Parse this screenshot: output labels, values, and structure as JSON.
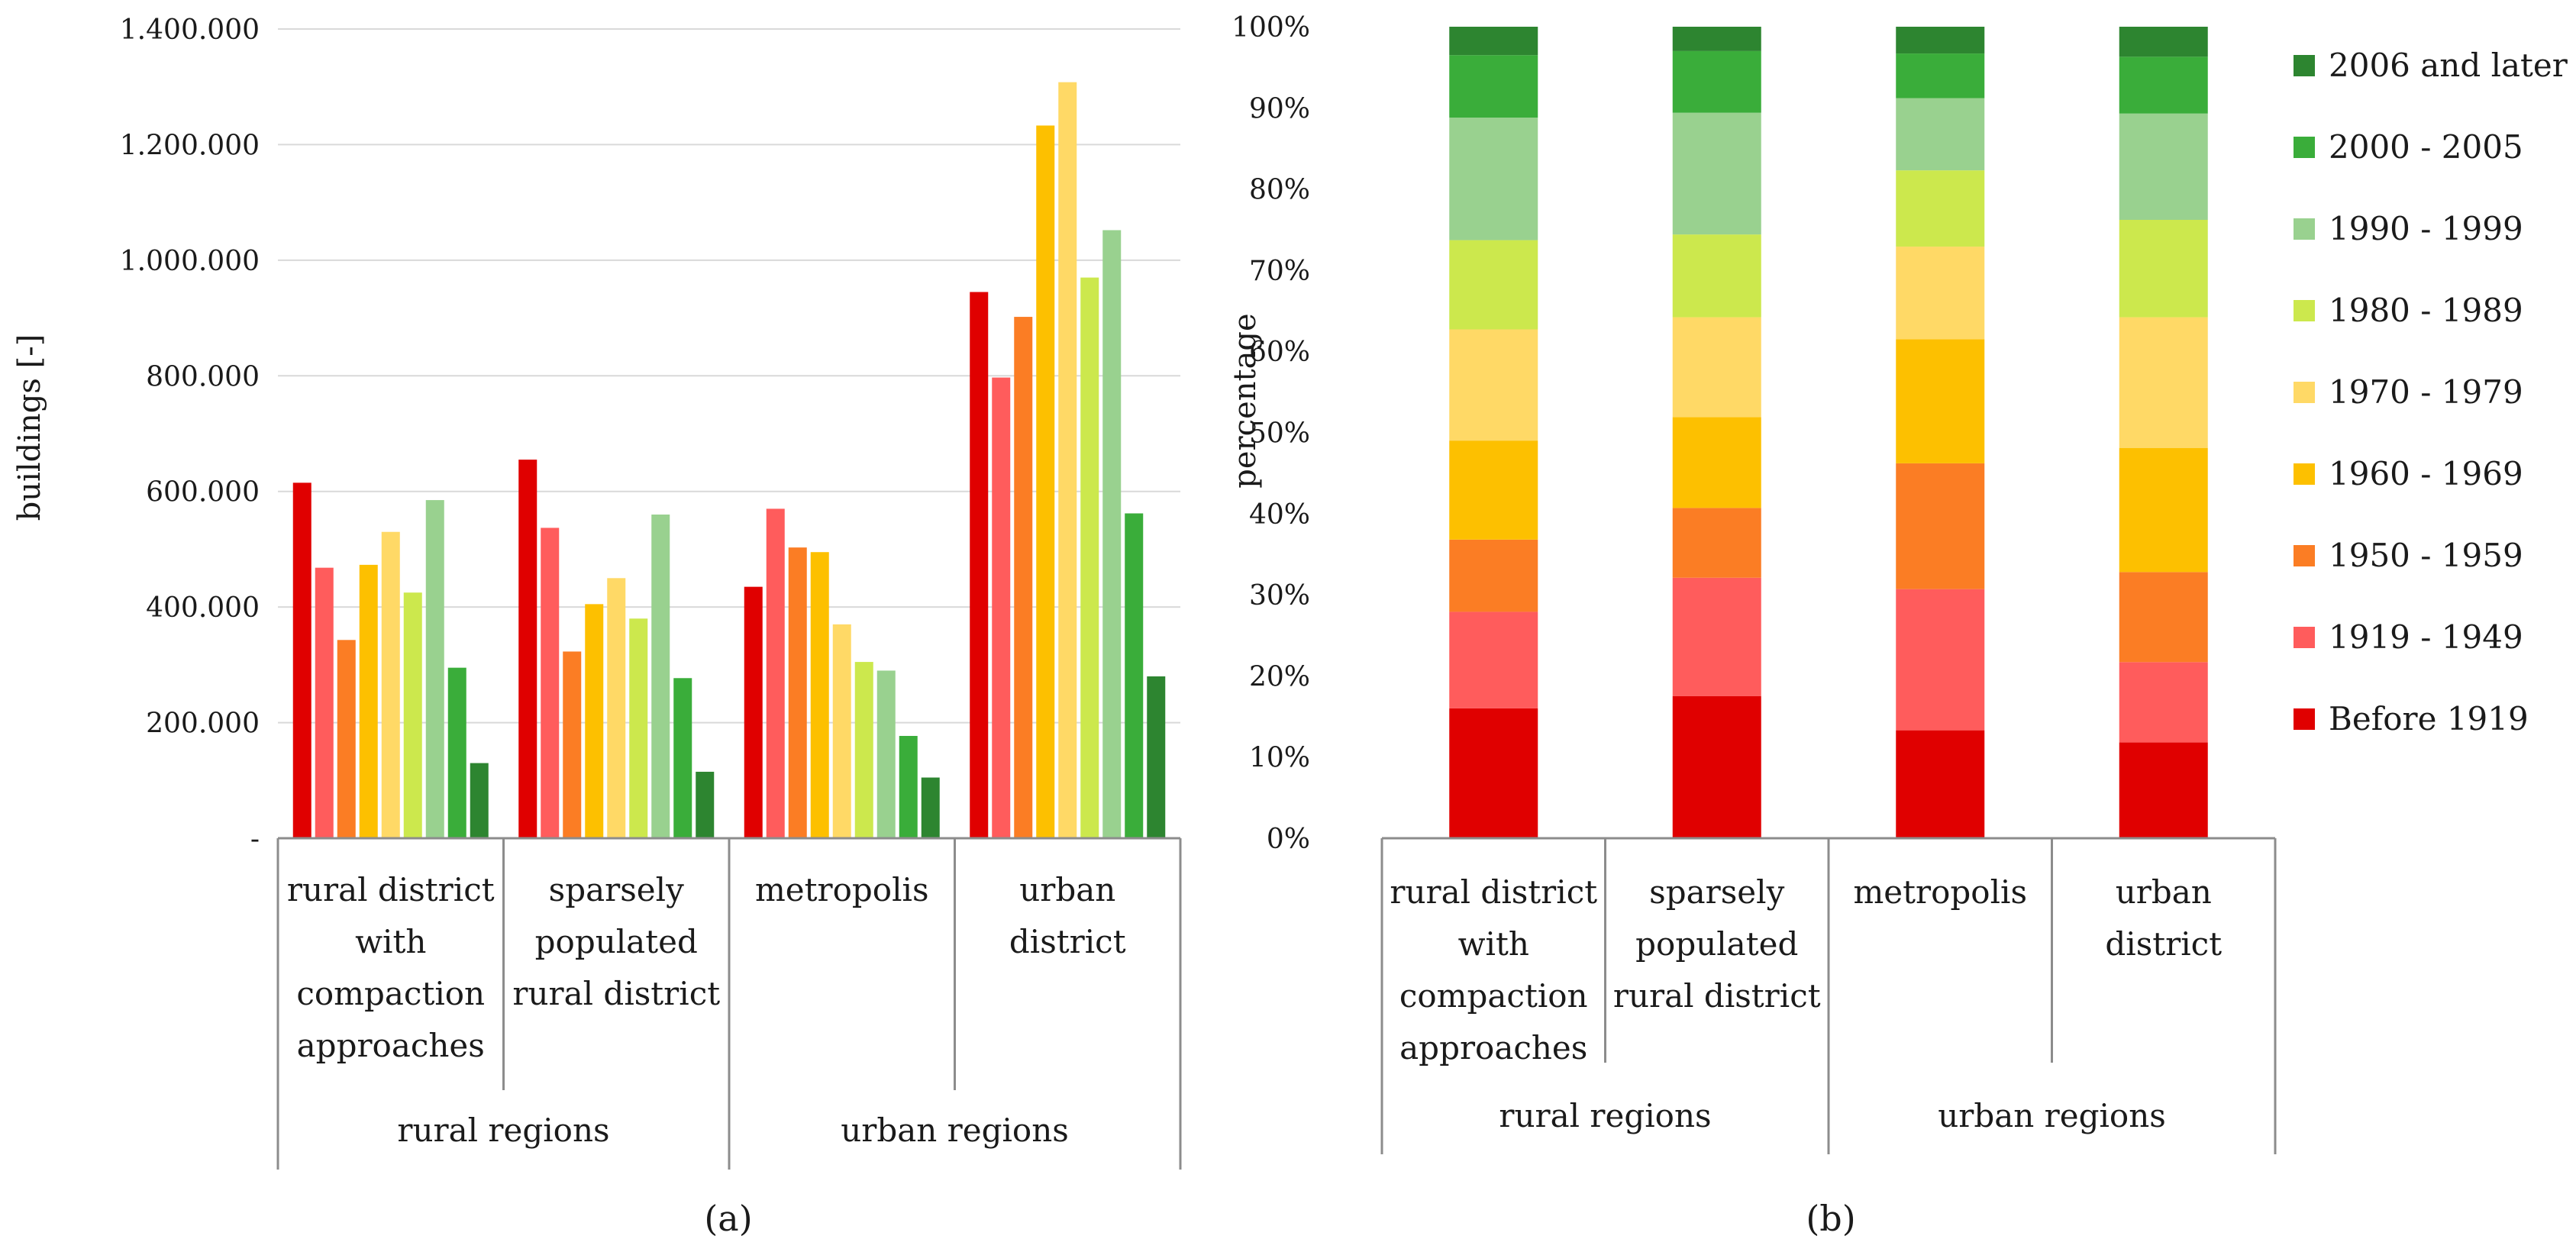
{
  "colors": {
    "Before 1919": "#e00000",
    "1919 - 1949": "#ff5c5c",
    "1950 - 1959": "#fb7d24",
    "1960 - 1969": "#fdc000",
    "1970 - 1979": "#ffd966",
    "1980 - 1989": "#cce84d",
    "1990 - 1999": "#99d18f",
    "2000 - 2005": "#3aad3a",
    "2006 and later": "#2d8530"
  },
  "chart_data": [
    {
      "id": "a",
      "type": "bar",
      "caption": "(a)",
      "title": "",
      "ylabel": "buildings [-]",
      "xlabel": "",
      "ylim": [
        0,
        1400000
      ],
      "yticks": [
        "-",
        "200.000",
        "400.000",
        "600.000",
        "800.000",
        "1.000.000",
        "1.200.000",
        "1.400.000"
      ],
      "categories": [
        "rural district with compaction approaches",
        "sparsely populated rural district",
        "metropolis",
        "urban district"
      ],
      "category_lines": [
        [
          "rural district",
          "with",
          "compaction",
          "approaches"
        ],
        [
          "sparsely",
          "populated",
          "rural district"
        ],
        [
          "metropolis"
        ],
        [
          "urban",
          "district"
        ]
      ],
      "groups": [
        "rural regions",
        "urban regions"
      ],
      "series": [
        {
          "name": "Before 1919",
          "values": [
            615000,
            655000,
            435000,
            945000
          ]
        },
        {
          "name": "1919 - 1949",
          "values": [
            468000,
            537000,
            570000,
            797000
          ]
        },
        {
          "name": "1950 - 1959",
          "values": [
            343000,
            323000,
            503000,
            902000
          ]
        },
        {
          "name": "1960 - 1969",
          "values": [
            473000,
            405000,
            495000,
            1233000
          ]
        },
        {
          "name": "1970 - 1979",
          "values": [
            530000,
            450000,
            370000,
            1308000
          ]
        },
        {
          "name": "1980 - 1989",
          "values": [
            425000,
            380000,
            305000,
            970000
          ]
        },
        {
          "name": "1990 - 1999",
          "values": [
            585000,
            560000,
            290000,
            1052000
          ]
        },
        {
          "name": "2000 - 2005",
          "values": [
            295000,
            277000,
            177000,
            562000
          ]
        },
        {
          "name": "2006 and later",
          "values": [
            130000,
            115000,
            105000,
            280000
          ]
        }
      ]
    },
    {
      "id": "b",
      "type": "bar",
      "stacked": true,
      "caption": "(b)",
      "title": "",
      "ylabel": "percentage",
      "xlabel": "",
      "ylim": [
        0,
        100
      ],
      "yticks": [
        "0%",
        "10%",
        "20%",
        "30%",
        "40%",
        "50%",
        "60%",
        "70%",
        "80%",
        "90%",
        "100%"
      ],
      "categories": [
        "rural district with compaction approaches",
        "sparsely populated rural district",
        "metropolis",
        "urban district"
      ],
      "category_lines": [
        [
          "rural district",
          "with",
          "compaction",
          "approaches"
        ],
        [
          "sparsely",
          "populated",
          "rural district"
        ],
        [
          "metropolis"
        ],
        [
          "urban",
          "district"
        ]
      ],
      "groups": [
        "rural regions",
        "urban regions"
      ],
      "legend": [
        "2006 and later",
        "2000 - 2005",
        "1990 - 1999",
        "1980 - 1989",
        "1970 - 1979",
        "1960 - 1969",
        "1950 - 1959",
        "1919 - 1949",
        "Before 1919"
      ],
      "legend_position": "right",
      "series": [
        {
          "name": "Before 1919",
          "values": [
            16.0,
            17.5,
            13.3,
            11.8
          ]
        },
        {
          "name": "1919 - 1949",
          "values": [
            11.9,
            14.6,
            17.4,
            9.9
          ]
        },
        {
          "name": "1950 - 1959",
          "values": [
            8.9,
            8.6,
            15.5,
            11.1
          ]
        },
        {
          "name": "1960 - 1969",
          "values": [
            12.2,
            11.2,
            15.3,
            15.3
          ]
        },
        {
          "name": "1970 - 1979",
          "values": [
            13.7,
            12.3,
            11.4,
            16.1
          ]
        },
        {
          "name": "1980 - 1989",
          "values": [
            11.0,
            10.2,
            9.4,
            12.0
          ]
        },
        {
          "name": "1990 - 1999",
          "values": [
            15.1,
            15.0,
            8.9,
            13.1
          ]
        },
        {
          "name": "2000 - 2005",
          "values": [
            7.7,
            7.6,
            5.5,
            7.0
          ]
        },
        {
          "name": "2006 and later",
          "values": [
            3.5,
            3.0,
            3.3,
            3.7
          ]
        }
      ]
    }
  ]
}
